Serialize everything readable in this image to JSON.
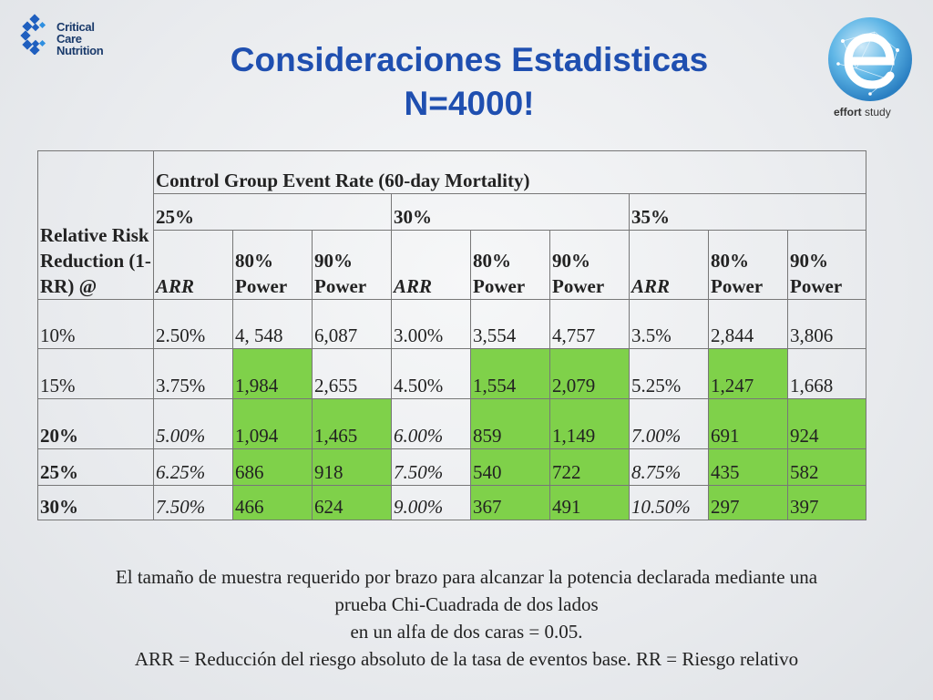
{
  "header": {
    "title_line1": "Consideraciones Estadisticas",
    "title_line2": "N=4000!"
  },
  "logos": {
    "ccn_line1": "Critical Care",
    "ccn_line2": "Nutrition",
    "effort_bold": "effort",
    "effort_rest": " study"
  },
  "table": {
    "row_header": "Relative Risk Reduction (1-RR) @",
    "group_header": "Control Group Event Rate (60-day Mortality)",
    "rates": [
      "25%",
      "30%",
      "35%"
    ],
    "subheaders": [
      "ARR",
      "80% Power",
      "90% Power"
    ],
    "rows": [
      {
        "rrr": "10%",
        "cells": [
          "2.50%",
          "4, 548",
          "6,087",
          "3.00%",
          "3,554",
          "4,757",
          "3.5%",
          "2,844",
          "3,806"
        ]
      },
      {
        "rrr": "15%",
        "cells": [
          "3.75%",
          "1,984",
          "2,655",
          "4.50%",
          "1,554",
          "2,079",
          "5.25%",
          "1,247",
          "1,668"
        ]
      },
      {
        "rrr": "20%",
        "cells": [
          "5.00%",
          "1,094",
          "1,465",
          "6.00%",
          "859",
          "1,149",
          "7.00%",
          "691",
          "924"
        ]
      },
      {
        "rrr": "25%",
        "cells": [
          "6.25%",
          "686",
          "918",
          "7.50%",
          "540",
          "722",
          "8.75%",
          "435",
          "582"
        ]
      },
      {
        "rrr": "30%",
        "cells": [
          "7.50%",
          "466",
          "624",
          "9.00%",
          "367",
          "491",
          "10.50%",
          "297",
          "397"
        ]
      }
    ],
    "highlight_color": "#7fd14a"
  },
  "footnote": {
    "line1": "El tamaño de muestra requerido por brazo para alcanzar la potencia declarada mediante una",
    "line2": "prueba Chi-Cuadrada de dos lados",
    "line3": "en un alfa de dos caras = 0.05.",
    "line4": "ARR = Reducción del riesgo absoluto de la tasa de eventos base. RR = Riesgo relativo"
  }
}
